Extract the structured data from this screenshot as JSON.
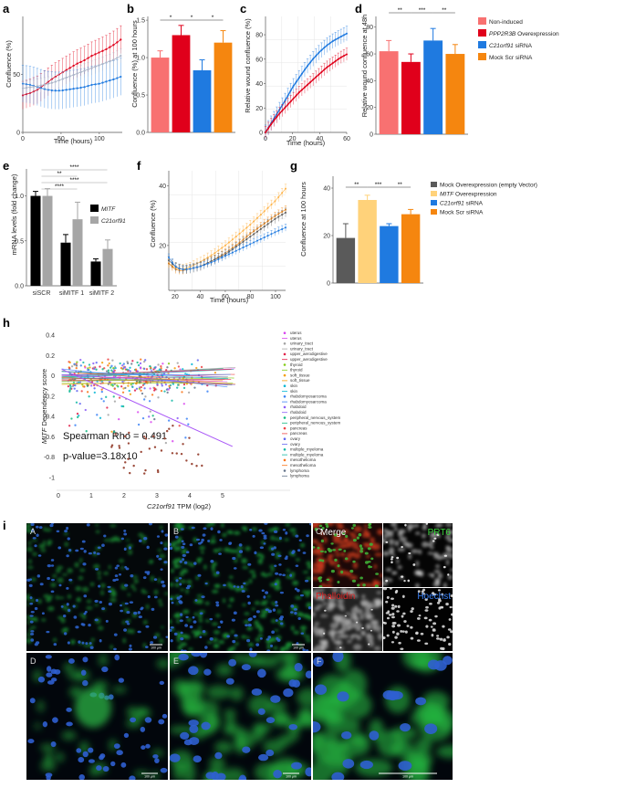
{
  "panels": {
    "a": {
      "label": "a",
      "ylabel": "Confluence (%)",
      "xlabel": "Time (hours)"
    },
    "b": {
      "label": "b",
      "ylabel": "Confluence (%) at 100 hours"
    },
    "c": {
      "label": "c",
      "ylabel": "Relative wound confluence (%)",
      "xlabel": "Time (hours)"
    },
    "d": {
      "label": "d",
      "ylabel": "Relative wound confluence at 48h"
    },
    "e": {
      "label": "e",
      "ylabel": "mRNA levels (fold change)"
    },
    "f": {
      "label": "f",
      "ylabel": "Confluence (%)",
      "xlabel": "Time (hours)"
    },
    "g": {
      "label": "g",
      "ylabel": "Confluence at 100 hours"
    },
    "h": {
      "label": "h",
      "ylabel_gene": "MITF",
      "ylabel_rest": " Dependency score",
      "xlabel_gene": "C21orf91",
      "xlabel_rest": " TPM (log2)",
      "stat1": "Spearman Rho = 0.491",
      "stat2": "p-value=3.18x10"
    },
    "i": {
      "label": "i"
    }
  },
  "legend_top": [
    {
      "text": "Non-induced",
      "italic": "",
      "color": "#f87171"
    },
    {
      "text": " Overexpression",
      "italic": "PPP2R3B",
      "color": "#e0001b"
    },
    {
      "text": " siRNA",
      "italic": "C21orf91",
      "color": "#1f7ae0"
    },
    {
      "text": "Mock Scr siRNA",
      "italic": "",
      "color": "#f5860f"
    }
  ],
  "legend_e": [
    {
      "italic": "MITF",
      "color": "#000000"
    },
    {
      "italic": "C21orf91",
      "color": "#a6a6a6"
    }
  ],
  "legend_g": [
    {
      "text": "Mock Overexpression (empty Vector)",
      "italic": "",
      "color": "#5a5a5a"
    },
    {
      "text": " Overexpression",
      "italic": "MITF",
      "color": "#ffd27a"
    },
    {
      "text": " siRNA",
      "italic": "C21orf91",
      "color": "#1f7ae0"
    },
    {
      "text": "Mock Scr siRNA",
      "italic": "",
      "color": "#f5860f"
    }
  ],
  "legend_h": [
    "uterus",
    "uterus",
    "urinary_tract",
    "urinary_tract",
    "upper_aerodigestive",
    "upper_aerodigestive",
    "thyroid",
    "thyroid",
    "soft_tissue",
    "soft_tissue",
    "skin",
    "skin",
    "rhabdomyosarcoma",
    "rhabdomyosarcoma",
    "rhabdoid",
    "rhabdoid",
    "peripheral_nervous_system",
    "peripheral_nervous_system",
    "pancreas",
    "pancreas",
    "ovary",
    "ovary",
    "multiple_myeloma",
    "multiple_myeloma",
    "mesothelioma",
    "mesothelioma",
    "lymphoma",
    "lymphoma"
  ],
  "legend_h_colors": [
    "#d946ef",
    "#a3a3a3",
    "#e11d48",
    "#84cc16",
    "#f59e0b",
    "#06b6d4",
    "#3b82f6",
    "#8b5cf6",
    "#10b981",
    "#ef4444",
    "#6366f1",
    "#14b8a6",
    "#f97316",
    "#64748b"
  ],
  "micrographs": {
    "labels": [
      "A",
      "B",
      "C",
      "D",
      "E",
      "F"
    ],
    "channels": [
      "Merge",
      "PRT6",
      "Phalloidin",
      "Hoechst"
    ],
    "scale_bar": "100 µm",
    "channel_colors": [
      "#ffffff",
      "#3ad13a",
      "#e02424",
      "#3b82f6"
    ]
  },
  "chart_data": [
    {
      "id": "a",
      "type": "line",
      "xlabel": "Time (hours)",
      "ylabel": "Confluence (%)",
      "xticks": [
        0,
        50,
        100
      ],
      "yticks": [
        0,
        50
      ],
      "xlim": [
        0,
        130
      ],
      "ylim": [
        0,
        100
      ],
      "series": [
        {
          "color": "#e0001b",
          "x": [
            0,
            10,
            20,
            30,
            40,
            50,
            60,
            70,
            80,
            90,
            100,
            110,
            120,
            128
          ],
          "y": [
            32,
            34,
            37,
            42,
            47,
            51,
            55,
            59,
            62,
            66,
            69,
            72,
            76,
            80
          ],
          "err": 12
        },
        {
          "color": "#1f7ae0",
          "x": [
            0,
            10,
            20,
            30,
            40,
            50,
            60,
            70,
            80,
            90,
            100,
            110,
            120,
            128
          ],
          "y": [
            42,
            41,
            39,
            37,
            36,
            36,
            37,
            38,
            39,
            41,
            42,
            44,
            46,
            48
          ],
          "err": 16
        },
        {
          "color": "#aab4c8",
          "x": [
            0,
            20,
            40,
            60,
            80,
            100,
            120,
            128
          ],
          "y": [
            38,
            40,
            43,
            48,
            53,
            58,
            63,
            66
          ],
          "err": 6
        }
      ]
    },
    {
      "id": "b",
      "type": "bar",
      "ylabel": "Confluence (%) at 100 hours",
      "ylim": [
        0,
        1.55
      ],
      "yticks": [
        0,
        0.5,
        1.0,
        1.5
      ],
      "values": [
        1.0,
        1.3,
        0.83,
        1.2
      ],
      "errors": [
        0.09,
        0.13,
        0.14,
        0.16
      ],
      "colors": [
        "#f87171",
        "#e0001b",
        "#1f7ae0",
        "#f5860f"
      ],
      "significance": [
        "*",
        "*",
        "*"
      ]
    },
    {
      "id": "c",
      "type": "line",
      "xlabel": "Time (hours)",
      "ylabel": "Relative wound confluence (%)",
      "xticks": [
        0,
        20,
        40,
        60
      ],
      "yticks": [
        0,
        20,
        40,
        60,
        80
      ],
      "xlim": [
        0,
        60
      ],
      "ylim": [
        0,
        95
      ],
      "series": [
        {
          "color": "#1f7ae0",
          "x": [
            0,
            5,
            10,
            15,
            20,
            25,
            30,
            35,
            40,
            45,
            50,
            55,
            60
          ],
          "y": [
            0,
            9,
            18,
            27,
            37,
            45,
            53,
            60,
            66,
            71,
            75,
            78,
            81
          ],
          "err": 6
        },
        {
          "color": "#e0001b",
          "x": [
            0,
            5,
            10,
            15,
            20,
            25,
            30,
            35,
            40,
            45,
            50,
            55,
            60
          ],
          "y": [
            0,
            8,
            15,
            21,
            27,
            33,
            38,
            43,
            48,
            53,
            57,
            61,
            64
          ],
          "err": 5
        }
      ]
    },
    {
      "id": "d",
      "type": "bar",
      "ylabel": "Relative wound confluence at 48h",
      "ylim": [
        0,
        88
      ],
      "yticks": [
        0,
        20,
        40,
        60,
        80
      ],
      "values": [
        62,
        54,
        70,
        60
      ],
      "errors": [
        8,
        6,
        9,
        7
      ],
      "colors": [
        "#f87171",
        "#e0001b",
        "#1f7ae0",
        "#f5860f"
      ],
      "significance": [
        "**",
        "***",
        "**"
      ]
    },
    {
      "id": "e",
      "type": "bar",
      "ylabel": "mRNA levels (fold change)",
      "categories": [
        "siSCR",
        "siMITF 1",
        "siMITF 2"
      ],
      "ylim": [
        0,
        1.3
      ],
      "yticks": [
        0,
        0.5,
        1.0
      ],
      "series": [
        {
          "name": "MITF",
          "values": [
            1.0,
            0.48,
            0.27
          ],
          "errors": [
            0.05,
            0.09,
            0.03
          ]
        },
        {
          "name": "C21orf91",
          "values": [
            1.0,
            0.74,
            0.41
          ],
          "errors": [
            0.08,
            0.19,
            0.1
          ]
        }
      ],
      "significance": [
        "****",
        "**",
        "****",
        "****"
      ]
    },
    {
      "id": "f",
      "type": "line",
      "xlabel": "Time (hours)",
      "ylabel": "Confluence (%)",
      "xticks": [
        20,
        40,
        60,
        80,
        100
      ],
      "yticks": [
        20,
        40
      ],
      "xlim": [
        15,
        108
      ],
      "ylim": [
        5,
        45
      ],
      "series": [
        {
          "color": "#ffb347",
          "x": [
            15,
            20,
            25,
            30,
            40,
            50,
            60,
            70,
            80,
            90,
            100,
            108
          ],
          "y": [
            14,
            12.5,
            12,
            12.5,
            14.5,
            17,
            20,
            23.5,
            27,
            31,
            35,
            39
          ],
          "err": 1.5
        },
        {
          "color": "#f5860f",
          "x": [
            15,
            20,
            25,
            30,
            40,
            50,
            60,
            70,
            80,
            90,
            100,
            108
          ],
          "y": [
            14,
            12,
            11.5,
            12,
            13,
            15,
            17.5,
            20.5,
            24,
            27,
            30,
            32
          ],
          "err": 1.3
        },
        {
          "color": "#5a5a5a",
          "x": [
            15,
            20,
            25,
            30,
            40,
            50,
            60,
            70,
            80,
            90,
            100,
            108
          ],
          "y": [
            15,
            13,
            12,
            12,
            13,
            15,
            17,
            20,
            23,
            26,
            29,
            31
          ],
          "err": 1.5
        },
        {
          "color": "#1f7ae0",
          "x": [
            15,
            20,
            25,
            30,
            40,
            50,
            60,
            70,
            80,
            90,
            100,
            108
          ],
          "y": [
            16,
            13,
            12,
            12,
            13,
            14.5,
            16.5,
            18.5,
            20.5,
            22.5,
            24.5,
            26
          ],
          "err": 1.2
        }
      ]
    },
    {
      "id": "g",
      "type": "bar",
      "ylabel": "Confluence at 100 hours",
      "ylim": [
        0,
        45
      ],
      "yticks": [
        0,
        20,
        40
      ],
      "values": [
        19,
        35,
        24,
        29
      ],
      "errors": [
        6,
        2,
        1,
        2
      ],
      "colors": [
        "#5a5a5a",
        "#ffd27a",
        "#1f7ae0",
        "#f5860f"
      ],
      "significance": [
        "**",
        "***",
        "**"
      ]
    },
    {
      "id": "h",
      "type": "scatter",
      "xlabel": "C21orf91 TPM (log2)",
      "ylabel": "MITF Dependency score",
      "xlim": [
        0,
        6
      ],
      "ylim": [
        -1.05,
        0.45
      ],
      "xticks": [
        0,
        1,
        2,
        3,
        4,
        5
      ],
      "yticks": [
        0.4,
        0.2,
        0,
        -0.2,
        -0.4,
        -0.6,
        -0.8,
        -1
      ],
      "regression": {
        "x": [
          0.1,
          5.3
        ],
        "y": [
          0.07,
          -0.69
        ]
      }
    }
  ]
}
